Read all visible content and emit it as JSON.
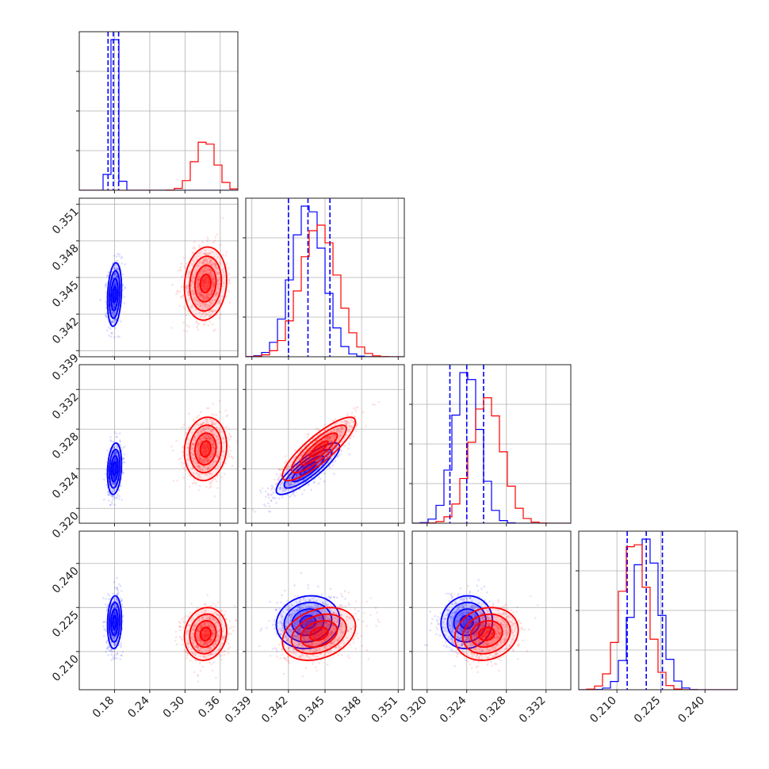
{
  "figure": {
    "kind": "corner plot"
  },
  "chart_data": {
    "type": "corner",
    "parameters": [
      {
        "name": "",
        "range": [
          0.12,
          0.39
        ],
        "ticks": [
          "0.18",
          "0.24",
          "0.30",
          "0.36"
        ],
        "tick_values": [
          0.18,
          0.24,
          0.3,
          0.36
        ]
      },
      {
        "name": "",
        "range": [
          0.3385,
          0.3515
        ],
        "ticks": [
          "0.339",
          "0.342",
          "0.345",
          "0.348",
          "0.351"
        ],
        "tick_values": [
          0.339,
          0.342,
          0.345,
          0.348,
          0.351
        ]
      },
      {
        "name": "",
        "range": [
          0.3185,
          0.3345
        ],
        "ticks": [
          "0.320",
          "0.324",
          "0.328",
          "0.332"
        ],
        "tick_values": [
          0.32,
          0.324,
          0.328,
          0.332
        ]
      },
      {
        "name": "",
        "range": [
          0.197,
          0.251
        ],
        "ticks": [
          "0.210",
          "0.225",
          "0.240"
        ],
        "tick_values": [
          0.21,
          0.225,
          0.24
        ]
      }
    ],
    "series": [
      {
        "color": "#0000ff",
        "mean": [
          0.18,
          0.3436,
          0.324,
          0.22
        ],
        "std": [
          0.006,
          0.0013,
          0.0013,
          0.0045
        ],
        "correlations": {
          "0-1": 0.2,
          "0-2": 0.2,
          "0-3": 0.1,
          "1-2": 0.85,
          "1-3": 0.1,
          "2-3": 0.05
        },
        "quantiles": [
          [
            0.169,
            0.178,
            0.187
          ],
          [
            0.342,
            0.3436,
            0.3454
          ],
          [
            0.3223,
            0.324,
            0.3257
          ],
          [
            0.2135,
            0.22,
            0.2255
          ]
        ]
      },
      {
        "color": "#ff0000",
        "mean": [
          0.335,
          0.3445,
          0.326,
          0.216
        ],
        "std": [
          0.018,
          0.0015,
          0.0016,
          0.0045
        ],
        "correlations": {
          "0-1": 0.1,
          "0-2": 0.1,
          "0-3": 0.1,
          "1-2": 0.85,
          "1-3": 0.3,
          "2-3": 0.15
        },
        "quantiles": null
      }
    ],
    "grid": true
  }
}
